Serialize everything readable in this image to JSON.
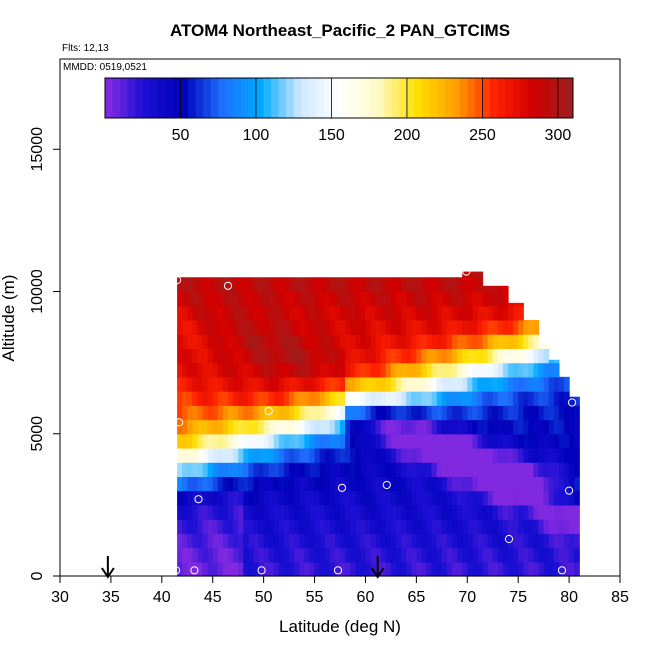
{
  "chart_data": {
    "type": "heatmap",
    "title": "ATOM4 Northeast_Pacific_2 PAN_GTCIMS",
    "flights_label": "Flts: 12,13",
    "dates_label": "MMDD: 0519,0521",
    "xlabel": "Latitude (deg N)",
    "ylabel": "Altitude (m)",
    "xlim": [
      30,
      85
    ],
    "ylim": [
      0,
      17500
    ],
    "x_ticks": [
      30,
      35,
      40,
      45,
      50,
      55,
      60,
      65,
      70,
      75,
      80,
      85
    ],
    "y_ticks": [
      0,
      5000,
      10000,
      15000
    ],
    "colorbar": {
      "min": 0,
      "max": 310,
      "ticks": [
        50,
        100,
        150,
        200,
        250,
        300
      ],
      "colors": [
        "#8a2be2",
        "#1c10d4",
        "#0000b8",
        "#1e6fff",
        "#00aaff",
        "#cfe8ff",
        "#ffffff",
        "#fffac8",
        "#ffe000",
        "#ffa000",
        "#ff2000",
        "#d00000",
        "#9c2020"
      ]
    },
    "grid": {
      "lat_start": 41.5,
      "lat_step": 0.5,
      "alt_step": 500,
      "altitude_ranges": [
        [
          41.5,
          10500
        ],
        [
          69.5,
          10700
        ],
        [
          71.5,
          10200
        ],
        [
          74.0,
          9600
        ],
        [
          75.5,
          9000
        ],
        [
          77.0,
          8200
        ],
        [
          78.0,
          7600
        ],
        [
          79.0,
          7000
        ],
        [
          80.0,
          6300
        ],
        [
          81.0,
          5500
        ],
        [
          81.5,
          0
        ]
      ]
    },
    "sample_points": [
      {
        "lat": 41.5,
        "alt": 10400
      },
      {
        "lat": 46.5,
        "alt": 10200
      },
      {
        "lat": 50.5,
        "alt": 5800
      },
      {
        "lat": 41.7,
        "alt": 5400
      },
      {
        "lat": 43.6,
        "alt": 2700
      },
      {
        "lat": 57.7,
        "alt": 3100
      },
      {
        "lat": 62.1,
        "alt": 3200
      },
      {
        "lat": 69.9,
        "alt": 10700
      },
      {
        "lat": 80.3,
        "alt": 6100
      },
      {
        "lat": 80.0,
        "alt": 3000
      },
      {
        "lat": 74.1,
        "alt": 1300
      },
      {
        "lat": 41.4,
        "alt": 200
      },
      {
        "lat": 43.2,
        "alt": 200
      },
      {
        "lat": 49.8,
        "alt": 200
      },
      {
        "lat": 57.3,
        "alt": 200
      },
      {
        "lat": 79.3,
        "alt": 200
      }
    ],
    "arrows": [
      34.7,
      61.2
    ]
  }
}
